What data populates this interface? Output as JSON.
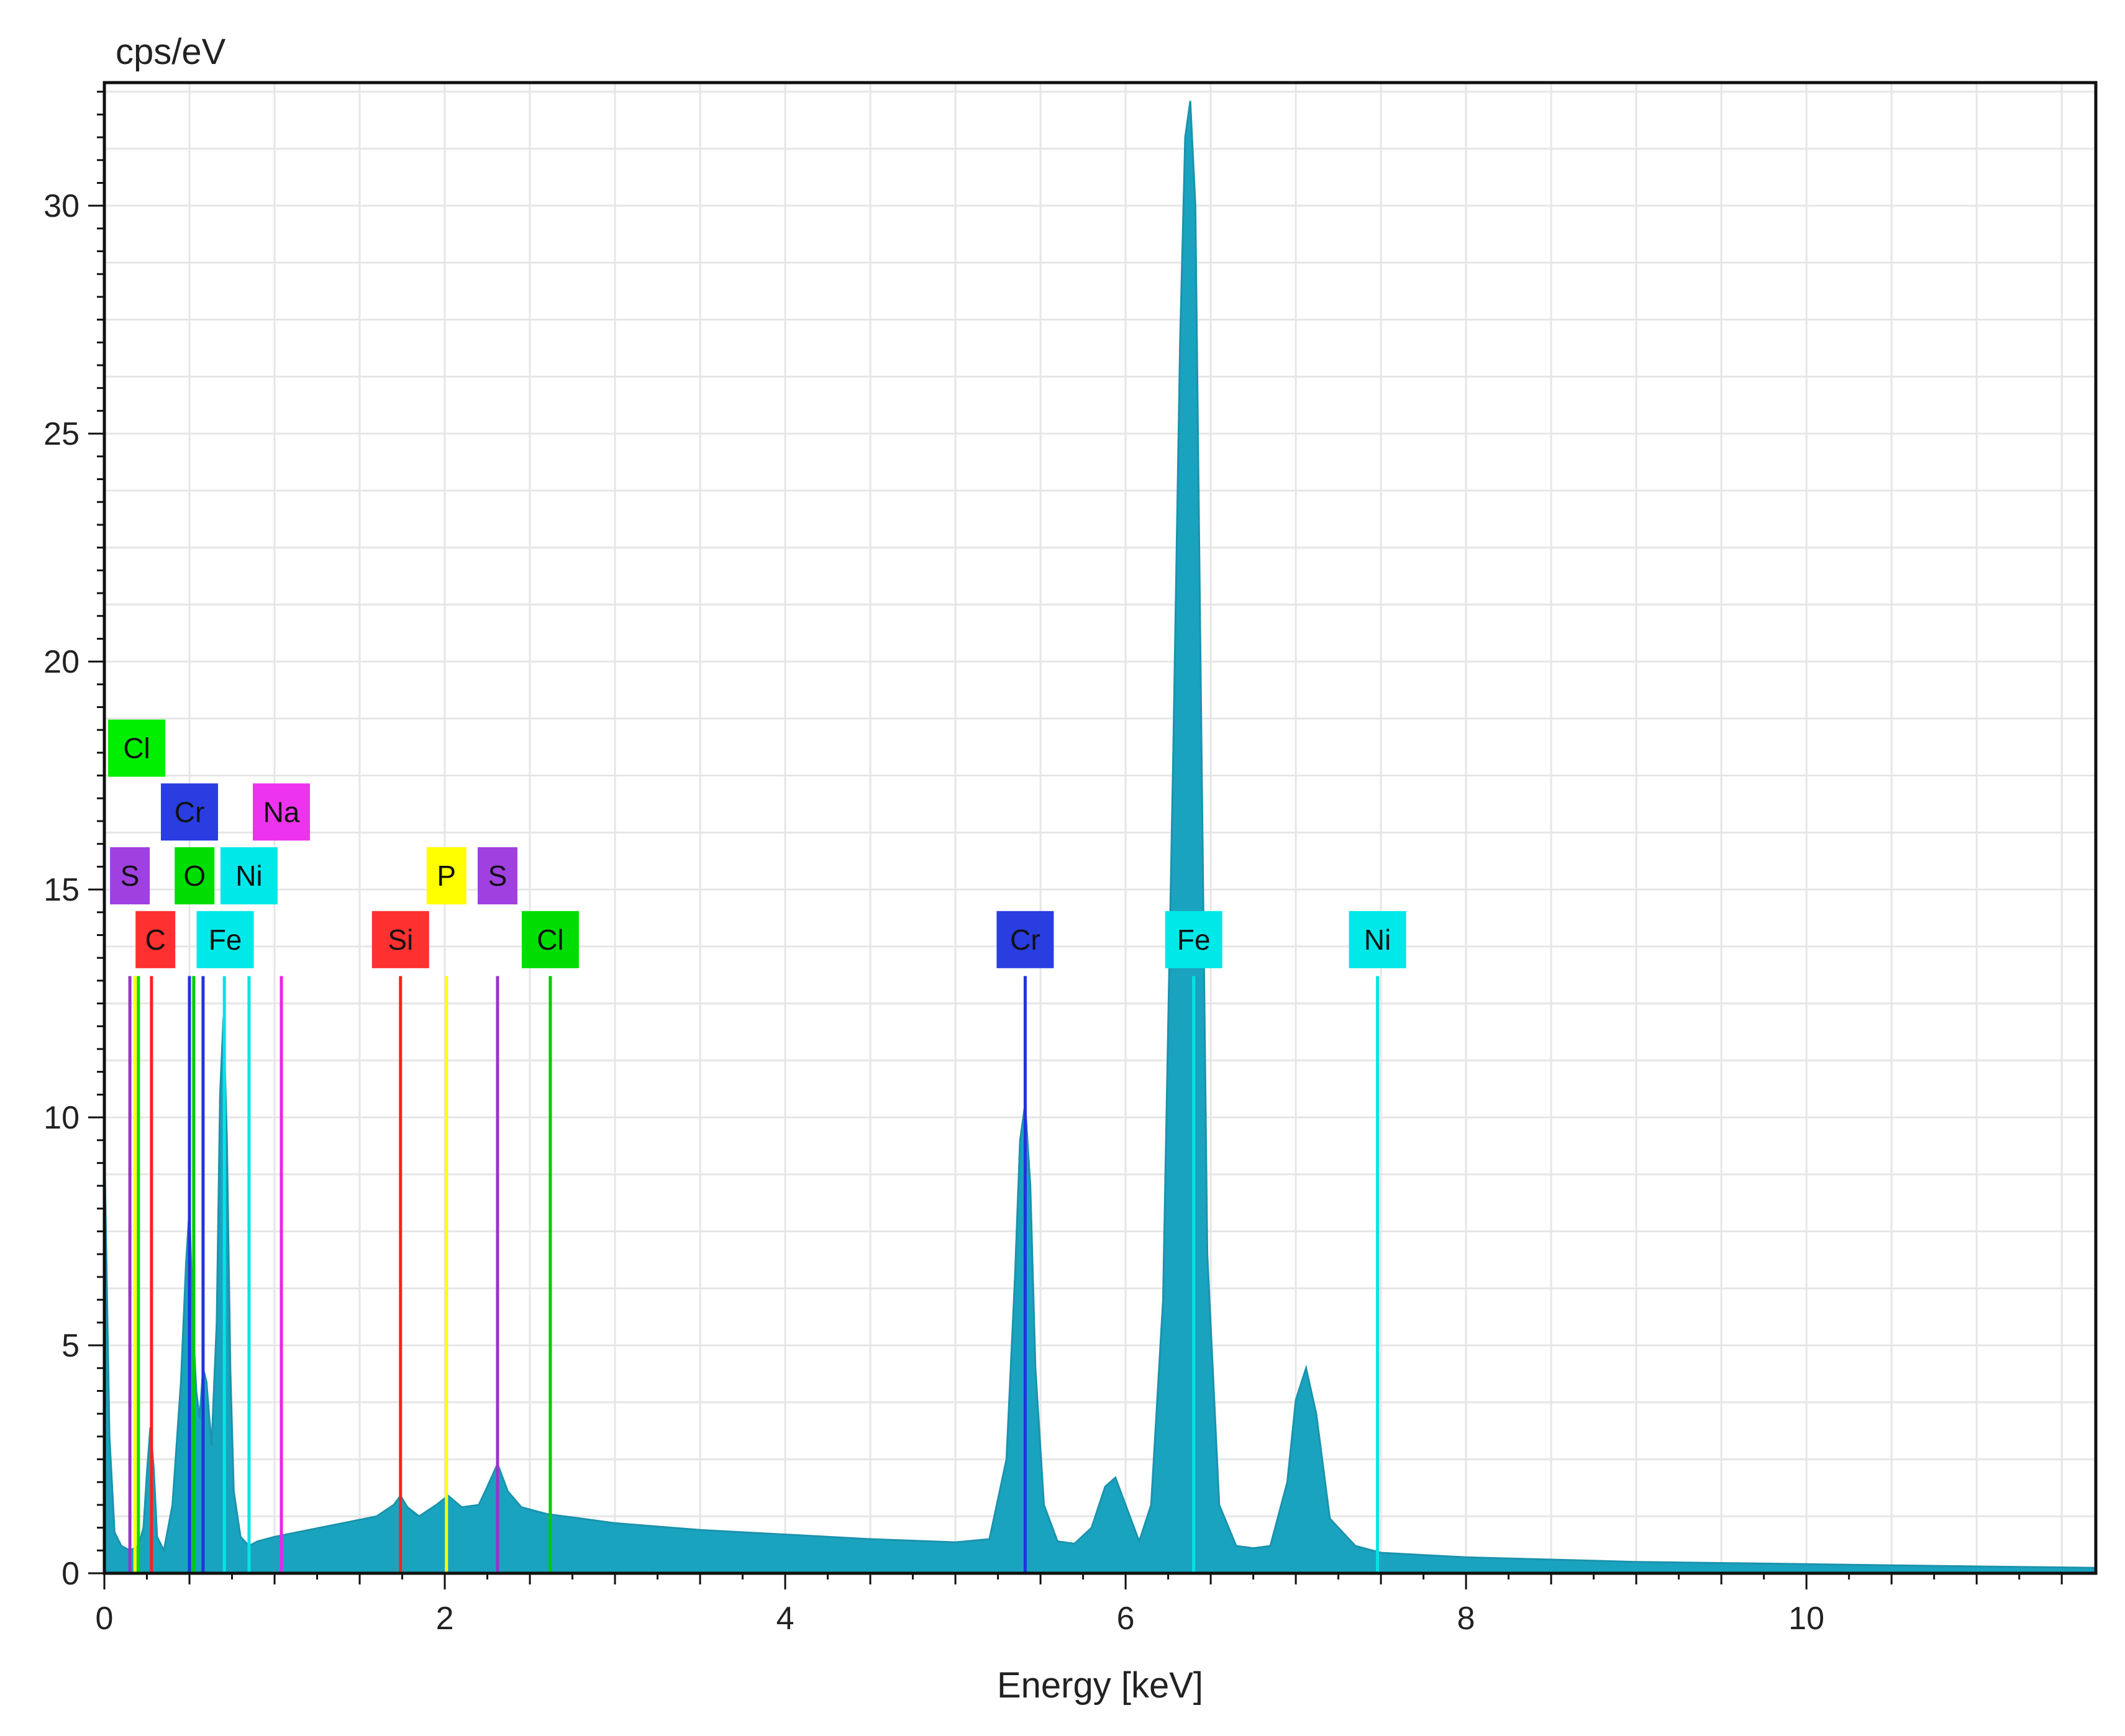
{
  "chart_data": {
    "type": "area",
    "xlabel": "Energy [keV]",
    "ylabel": "cps/eV",
    "xlim": [
      0,
      11.7
    ],
    "ylim": [
      0,
      32.7
    ],
    "xticks": [
      0,
      2,
      4,
      6,
      8,
      10
    ],
    "yticks": [
      0,
      5,
      10,
      15,
      20,
      25,
      30
    ],
    "grid": true,
    "colors": {
      "spectrum": "#1aa3bf",
      "background": "#ffffff",
      "grid": "#e6e6e6"
    },
    "series": [
      {
        "values": {
          "x": [
            0.0,
            0.03,
            0.06,
            0.1,
            0.15,
            0.2,
            0.23,
            0.25,
            0.27,
            0.29,
            0.31,
            0.35,
            0.4,
            0.45,
            0.48,
            0.5,
            0.52,
            0.54,
            0.56,
            0.58,
            0.6,
            0.63,
            0.66,
            0.68,
            0.7,
            0.72,
            0.74,
            0.76,
            0.8,
            0.85,
            0.9,
            1.0,
            1.2,
            1.4,
            1.6,
            1.7,
            1.74,
            1.78,
            1.85,
            1.95,
            2.02,
            2.1,
            2.2,
            2.25,
            2.31,
            2.37,
            2.45,
            2.6,
            2.8,
            3.0,
            3.5,
            4.0,
            4.5,
            5.0,
            5.2,
            5.3,
            5.35,
            5.38,
            5.41,
            5.44,
            5.47,
            5.52,
            5.6,
            5.7,
            5.8,
            5.88,
            5.94,
            6.0,
            6.08,
            6.15,
            6.22,
            6.28,
            6.32,
            6.35,
            6.38,
            6.41,
            6.44,
            6.48,
            6.55,
            6.65,
            6.75,
            6.85,
            6.95,
            7.0,
            7.06,
            7.12,
            7.2,
            7.35,
            7.5,
            8.0,
            9.0,
            10.0,
            11.0,
            11.7
          ],
          "y": [
            9.5,
            3.0,
            0.9,
            0.6,
            0.5,
            0.6,
            1.0,
            2.2,
            3.2,
            2.3,
            0.8,
            0.5,
            1.5,
            4.2,
            6.8,
            8.0,
            5.5,
            4.0,
            3.4,
            4.5,
            4.2,
            2.8,
            5.5,
            10.5,
            12.2,
            9.5,
            4.5,
            1.8,
            0.8,
            0.6,
            0.7,
            0.8,
            0.95,
            1.1,
            1.25,
            1.5,
            1.7,
            1.45,
            1.25,
            1.5,
            1.7,
            1.45,
            1.5,
            1.9,
            2.4,
            1.8,
            1.45,
            1.3,
            1.2,
            1.1,
            0.95,
            0.85,
            0.75,
            0.68,
            0.75,
            2.5,
            6.5,
            9.5,
            10.3,
            8.5,
            4.5,
            1.5,
            0.7,
            0.65,
            1.0,
            1.9,
            2.1,
            1.5,
            0.7,
            1.5,
            6.0,
            18.0,
            27.0,
            31.5,
            32.3,
            30.0,
            20.0,
            7.0,
            1.5,
            0.6,
            0.55,
            0.6,
            2.0,
            3.8,
            4.5,
            3.5,
            1.2,
            0.6,
            0.45,
            0.35,
            0.25,
            0.2,
            0.15,
            0.12
          ]
        }
      }
    ],
    "peak_markers": [
      {
        "energy": 0.15,
        "color": "#9a32cd"
      },
      {
        "energy": 0.18,
        "color": "#ffff00"
      },
      {
        "energy": 0.2,
        "color": "#00dd00"
      },
      {
        "energy": 0.277,
        "color": "#ff2020"
      },
      {
        "energy": 0.5,
        "color": "#2233dd"
      },
      {
        "energy": 0.525,
        "color": "#00cc00"
      },
      {
        "energy": 0.58,
        "color": "#2233dd"
      },
      {
        "energy": 0.705,
        "color": "#00e5e5"
      },
      {
        "energy": 0.85,
        "color": "#00e5e5"
      },
      {
        "energy": 1.04,
        "color": "#ee22ee"
      },
      {
        "energy": 1.74,
        "color": "#ff2020"
      },
      {
        "energy": 2.01,
        "color": "#ffff00"
      },
      {
        "energy": 2.31,
        "color": "#9a32cd"
      },
      {
        "energy": 2.62,
        "color": "#00cc00"
      },
      {
        "energy": 5.41,
        "color": "#2233dd"
      },
      {
        "energy": 6.4,
        "color": "#00e5e5"
      },
      {
        "energy": 7.48,
        "color": "#00e5e5"
      }
    ],
    "element_labels": [
      {
        "text": "Cl",
        "energy": 0.19,
        "y": 18.1,
        "color": "#00ee00"
      },
      {
        "text": "Cr",
        "energy": 0.5,
        "y": 16.7,
        "color": "#2a3de0"
      },
      {
        "text": "Na",
        "energy": 1.04,
        "y": 16.7,
        "color": "#ee33ee"
      },
      {
        "text": "S",
        "energy": 0.15,
        "y": 15.3,
        "color": "#a040e0"
      },
      {
        "text": "O",
        "energy": 0.53,
        "y": 15.3,
        "color": "#00dd00"
      },
      {
        "text": "Ni",
        "energy": 0.85,
        "y": 15.3,
        "color": "#00e8e8"
      },
      {
        "text": "P",
        "energy": 2.01,
        "y": 15.3,
        "color": "#ffff00"
      },
      {
        "text": "S",
        "energy": 2.31,
        "y": 15.3,
        "color": "#a040e0"
      },
      {
        "text": "C",
        "energy": 0.3,
        "y": 13.9,
        "color": "#ff3030"
      },
      {
        "text": "Fe",
        "energy": 0.71,
        "y": 13.9,
        "color": "#00e8e8"
      },
      {
        "text": "Si",
        "energy": 1.74,
        "y": 13.9,
        "color": "#ff3030"
      },
      {
        "text": "Cl",
        "energy": 2.62,
        "y": 13.9,
        "color": "#00dd00"
      },
      {
        "text": "Cr",
        "energy": 5.41,
        "y": 13.9,
        "color": "#2a3de0"
      },
      {
        "text": "Fe",
        "energy": 6.4,
        "y": 13.9,
        "color": "#00e8e8"
      },
      {
        "text": "Ni",
        "energy": 7.48,
        "y": 13.9,
        "color": "#00e8e8"
      }
    ]
  }
}
